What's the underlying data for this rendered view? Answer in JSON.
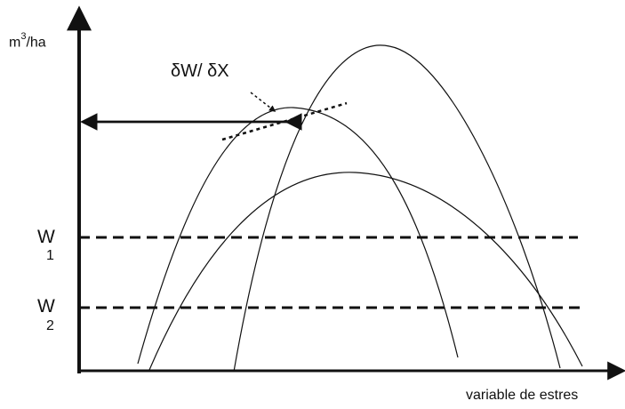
{
  "labels": {
    "y_axis_main": "m",
    "y_axis_exponent": "3",
    "y_axis_unit_tail": "/ha",
    "derivative": "δW/ δX",
    "w1_main": "W",
    "w1_sub": "1",
    "w2_main": "W",
    "w2_sub": "2",
    "x_axis": "variable de estres"
  },
  "colors": {
    "stroke": "#111111",
    "background": "#ffffff"
  }
}
